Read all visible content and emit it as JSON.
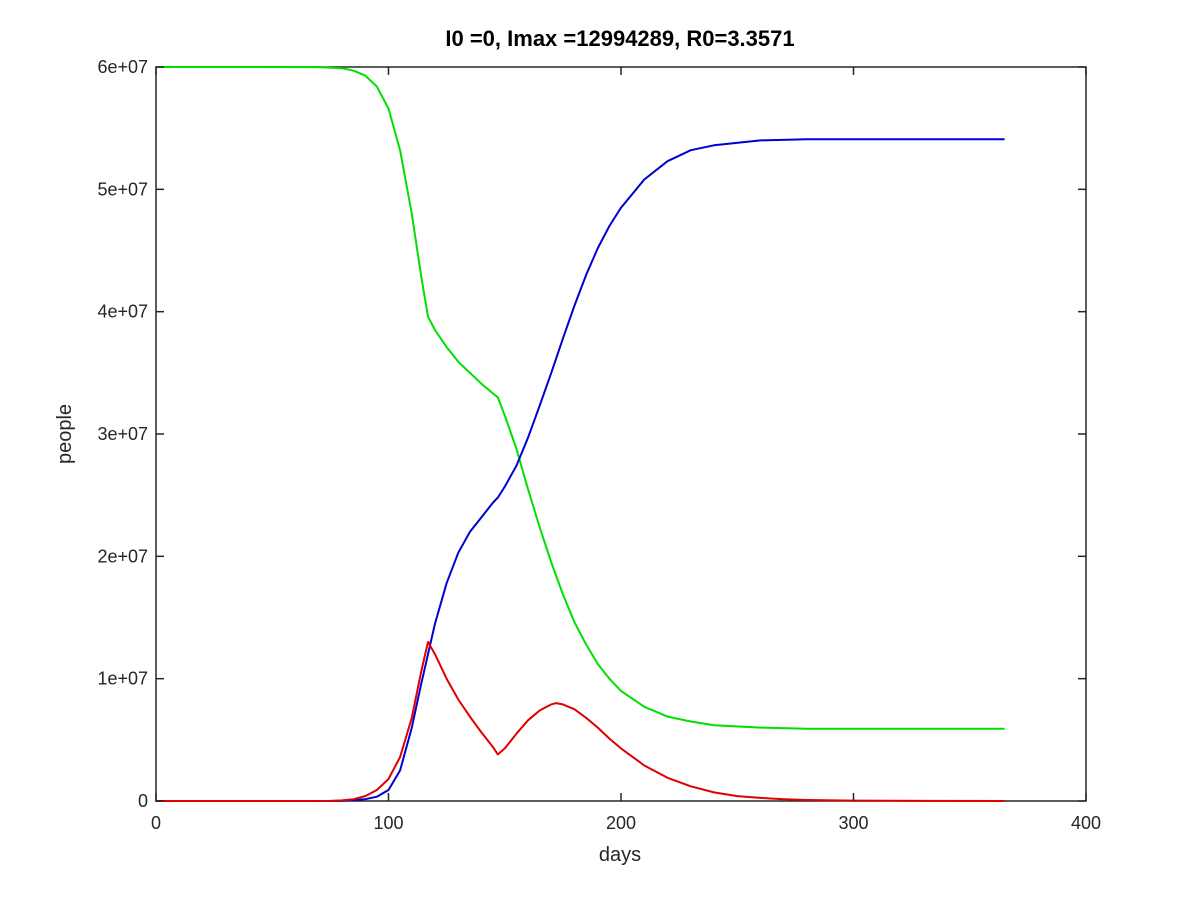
{
  "chart_data": {
    "type": "line",
    "title": "I0 =0, Imax =12994289, R0=3.3571",
    "xlabel": "days",
    "ylabel": "people",
    "xlim": [
      0,
      400
    ],
    "ylim": [
      0,
      60000000
    ],
    "xticks": [
      0,
      100,
      200,
      300,
      400
    ],
    "xtick_labels": [
      "0",
      "100",
      "200",
      "300",
      "400"
    ],
    "yticks": [
      0,
      10000000,
      20000000,
      30000000,
      40000000,
      50000000,
      60000000
    ],
    "ytick_labels": [
      "0",
      "1e+07",
      "2e+07",
      "3e+07",
      "4e+07",
      "5e+07",
      "6e+07"
    ],
    "grid": false,
    "legend": "none",
    "series": [
      {
        "color": "#00e000",
        "points": [
          [
            0,
            60000000
          ],
          [
            40,
            60000000
          ],
          [
            70,
            59990000
          ],
          [
            80,
            59900000
          ],
          [
            85,
            59700000
          ],
          [
            90,
            59300000
          ],
          [
            95,
            58400000
          ],
          [
            100,
            56600000
          ],
          [
            105,
            53200000
          ],
          [
            110,
            48000000
          ],
          [
            114,
            43000000
          ],
          [
            117,
            39600000
          ],
          [
            120,
            38500000
          ],
          [
            125,
            37100000
          ],
          [
            130,
            35900000
          ],
          [
            135,
            35000000
          ],
          [
            140,
            34100000
          ],
          [
            145,
            33300000
          ],
          [
            147,
            33000000
          ],
          [
            150,
            31500000
          ],
          [
            155,
            28800000
          ],
          [
            160,
            25500000
          ],
          [
            165,
            22400000
          ],
          [
            170,
            19500000
          ],
          [
            175,
            16900000
          ],
          [
            180,
            14600000
          ],
          [
            185,
            12800000
          ],
          [
            190,
            11200000
          ],
          [
            195,
            10000000
          ],
          [
            200,
            9000000
          ],
          [
            210,
            7700000
          ],
          [
            220,
            6900000
          ],
          [
            230,
            6500000
          ],
          [
            240,
            6200000
          ],
          [
            260,
            6000000
          ],
          [
            280,
            5900000
          ],
          [
            300,
            5900000
          ],
          [
            330,
            5900000
          ],
          [
            365,
            5900000
          ]
        ]
      },
      {
        "color": "#0000d0",
        "points": [
          [
            0,
            0
          ],
          [
            40,
            0
          ],
          [
            80,
            10000
          ],
          [
            90,
            150000
          ],
          [
            95,
            350000
          ],
          [
            100,
            900000
          ],
          [
            105,
            2500000
          ],
          [
            110,
            6000000
          ],
          [
            114,
            9500000
          ],
          [
            117,
            12000000
          ],
          [
            120,
            14500000
          ],
          [
            125,
            17800000
          ],
          [
            130,
            20300000
          ],
          [
            135,
            22000000
          ],
          [
            140,
            23200000
          ],
          [
            145,
            24400000
          ],
          [
            147,
            24800000
          ],
          [
            150,
            25700000
          ],
          [
            155,
            27400000
          ],
          [
            160,
            29700000
          ],
          [
            165,
            32300000
          ],
          [
            170,
            35000000
          ],
          [
            175,
            37800000
          ],
          [
            180,
            40500000
          ],
          [
            185,
            43000000
          ],
          [
            190,
            45200000
          ],
          [
            195,
            47000000
          ],
          [
            200,
            48500000
          ],
          [
            210,
            50800000
          ],
          [
            220,
            52300000
          ],
          [
            230,
            53200000
          ],
          [
            240,
            53600000
          ],
          [
            260,
            54000000
          ],
          [
            280,
            54100000
          ],
          [
            300,
            54100000
          ],
          [
            330,
            54100000
          ],
          [
            365,
            54100000
          ]
        ]
      },
      {
        "color": "#e00000",
        "points": [
          [
            0,
            0
          ],
          [
            40,
            0
          ],
          [
            75,
            10000
          ],
          [
            80,
            50000
          ],
          [
            85,
            150000
          ],
          [
            90,
            400000
          ],
          [
            95,
            900000
          ],
          [
            100,
            1800000
          ],
          [
            105,
            3600000
          ],
          [
            110,
            6800000
          ],
          [
            114,
            10500000
          ],
          [
            117,
            12994289
          ],
          [
            120,
            12000000
          ],
          [
            125,
            10000000
          ],
          [
            130,
            8300000
          ],
          [
            135,
            6900000
          ],
          [
            140,
            5600000
          ],
          [
            145,
            4400000
          ],
          [
            147,
            3800000
          ],
          [
            150,
            4300000
          ],
          [
            155,
            5500000
          ],
          [
            160,
            6600000
          ],
          [
            165,
            7400000
          ],
          [
            170,
            7900000
          ],
          [
            172,
            8000000
          ],
          [
            175,
            7900000
          ],
          [
            180,
            7500000
          ],
          [
            185,
            6800000
          ],
          [
            190,
            6000000
          ],
          [
            195,
            5100000
          ],
          [
            200,
            4300000
          ],
          [
            210,
            2900000
          ],
          [
            220,
            1900000
          ],
          [
            230,
            1200000
          ],
          [
            240,
            700000
          ],
          [
            250,
            400000
          ],
          [
            260,
            250000
          ],
          [
            270,
            150000
          ],
          [
            280,
            80000
          ],
          [
            300,
            30000
          ],
          [
            330,
            10000
          ],
          [
            365,
            0
          ]
        ]
      }
    ]
  }
}
